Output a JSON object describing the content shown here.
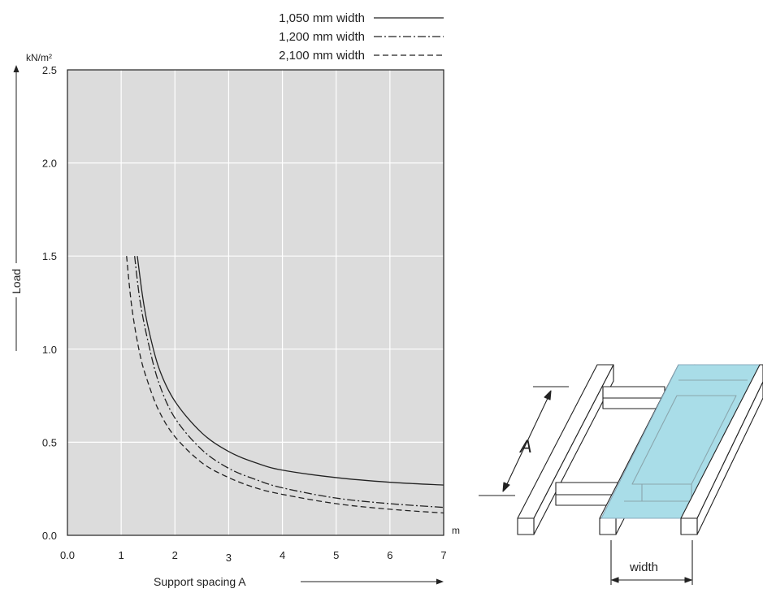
{
  "chart_data": {
    "type": "line",
    "title": "",
    "xlabel": "Support spacing A",
    "xunit": "m",
    "ylabel": "Load",
    "yunit": "kN/m²",
    "xlim": [
      0,
      7
    ],
    "ylim": [
      0,
      2.5
    ],
    "xticks": [
      0,
      1,
      2,
      3,
      4,
      5,
      6,
      7
    ],
    "xtick_labels": [
      "0.0",
      "1",
      "2",
      "3",
      "4",
      "5",
      "6",
      "7"
    ],
    "yticks": [
      0,
      0.5,
      1.0,
      1.5,
      2.0,
      2.5
    ],
    "ytick_labels": [
      "0.0",
      "0.5",
      "1.0",
      "1.5",
      "2.0",
      "2.5"
    ],
    "grid": true,
    "legend_position": "top-right, above plot",
    "plot_background": "#dcdcdc",
    "series": [
      {
        "name": "1,050 mm width",
        "dash": "solid",
        "x": [
          1.3,
          1.4,
          1.5,
          1.7,
          2.0,
          2.5,
          3.0,
          3.5,
          4.0,
          5.0,
          6.0,
          7.0
        ],
        "y": [
          1.5,
          1.28,
          1.12,
          0.9,
          0.72,
          0.55,
          0.45,
          0.39,
          0.35,
          0.31,
          0.285,
          0.27
        ]
      },
      {
        "name": "1,200 mm width",
        "dash": "dash-dot",
        "x": [
          1.25,
          1.35,
          1.5,
          1.7,
          2.0,
          2.5,
          3.0,
          3.5,
          4.0,
          5.0,
          6.0,
          7.0
        ],
        "y": [
          1.5,
          1.26,
          1.04,
          0.82,
          0.63,
          0.46,
          0.36,
          0.3,
          0.255,
          0.2,
          0.17,
          0.15
        ]
      },
      {
        "name": "2,100 mm width",
        "dash": "dashed",
        "x": [
          1.1,
          1.2,
          1.35,
          1.5,
          1.7,
          2.0,
          2.5,
          3.0,
          3.5,
          4.0,
          5.0,
          6.0,
          7.0
        ],
        "y": [
          1.5,
          1.22,
          0.97,
          0.82,
          0.67,
          0.53,
          0.39,
          0.31,
          0.255,
          0.22,
          0.17,
          0.14,
          0.12
        ]
      }
    ]
  },
  "diagram": {
    "dimension_label": "A",
    "width_label": "width"
  }
}
